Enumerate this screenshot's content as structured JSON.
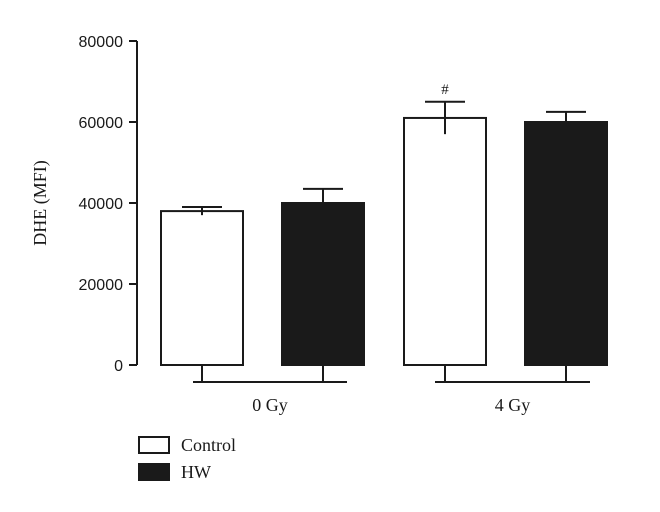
{
  "chart_data": {
    "type": "bar",
    "ylabel": "DHE (MFI)",
    "ylim": [
      0,
      80000
    ],
    "yticks": [
      "0",
      "20000",
      "40000",
      "60000",
      "80000"
    ],
    "groups": [
      {
        "label": "0 Gy",
        "bars": [
          {
            "series": "Control",
            "value": 38000,
            "error": 1000,
            "annotation": ""
          },
          {
            "series": "HW",
            "value": 40000,
            "error": 3500,
            "annotation": ""
          }
        ]
      },
      {
        "label": "4 Gy",
        "bars": [
          {
            "series": "Control",
            "value": 61000,
            "error": 4000,
            "annotation": "#"
          },
          {
            "series": "HW",
            "value": 60000,
            "error": 2500,
            "annotation": ""
          }
        ]
      }
    ],
    "series": [
      {
        "name": "Control",
        "values": [
          38000,
          61000
        ],
        "color": "#ffffff"
      },
      {
        "name": "HW",
        "values": [
          40000,
          60000
        ],
        "color": "#1a1a1a"
      }
    ],
    "legend_position": "bottom-left",
    "grid": false
  }
}
